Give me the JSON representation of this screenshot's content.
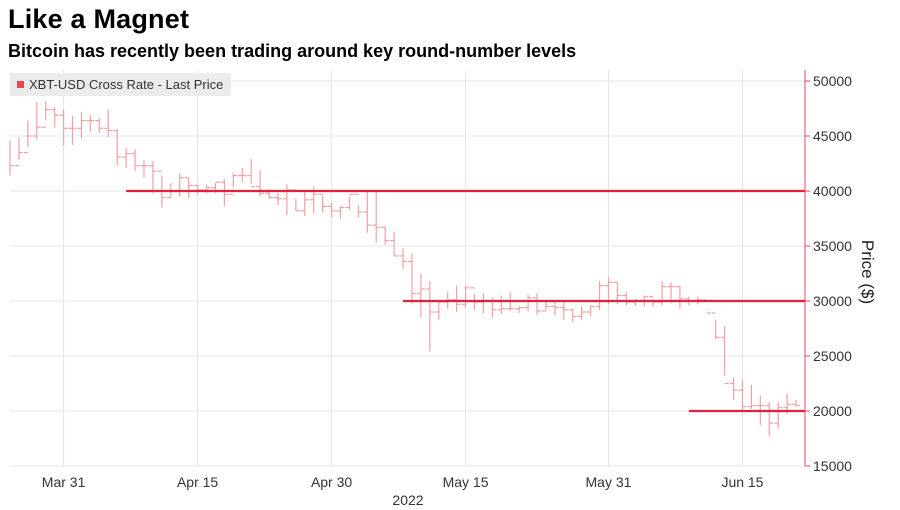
{
  "header": {
    "title": "Like a Magnet",
    "subtitle": "Bitcoin has recently been trading around key round-number levels"
  },
  "colors": {
    "price_bar": "#f2a0a4",
    "level_line": "#e0203c",
    "axis": "#e8474f",
    "grid": "#e6e6e6"
  },
  "chart_data": {
    "type": "line",
    "style": "hlc-bars",
    "title": "Like a Magnet",
    "subtitle": "Bitcoin has recently been trading around key round-number levels",
    "xlabel": "2022",
    "ylabel": "Price ($)",
    "ylim": [
      15000,
      51000
    ],
    "yticks": [
      15000,
      20000,
      25000,
      30000,
      35000,
      40000,
      45000,
      50000
    ],
    "ytick_labels": [
      "15000",
      "20000",
      "25000",
      "30000",
      "35000",
      "40000",
      "45000",
      "50000"
    ],
    "xticks": [
      "2022-03-31",
      "2022-04-15",
      "2022-04-30",
      "2022-05-15",
      "2022-05-31",
      "2022-06-15"
    ],
    "xtick_labels": [
      "Mar 31",
      "Apr 15",
      "Apr 30",
      "May 15",
      "May 31",
      "Jun 15"
    ],
    "xlim": [
      "2022-03-25",
      "2022-06-22"
    ],
    "grid": true,
    "legend": {
      "position": "top-left",
      "entries": [
        "XBT-USD Cross Rate - Last Price"
      ]
    },
    "series": [
      {
        "name": "XBT-USD Cross Rate - Last Price",
        "x": [
          "2022-03-25",
          "2022-03-26",
          "2022-03-27",
          "2022-03-28",
          "2022-03-29",
          "2022-03-30",
          "2022-03-31",
          "2022-04-01",
          "2022-04-02",
          "2022-04-03",
          "2022-04-04",
          "2022-04-05",
          "2022-04-06",
          "2022-04-07",
          "2022-04-08",
          "2022-04-09",
          "2022-04-10",
          "2022-04-11",
          "2022-04-12",
          "2022-04-13",
          "2022-04-14",
          "2022-04-15",
          "2022-04-16",
          "2022-04-17",
          "2022-04-18",
          "2022-04-19",
          "2022-04-20",
          "2022-04-21",
          "2022-04-22",
          "2022-04-23",
          "2022-04-24",
          "2022-04-25",
          "2022-04-26",
          "2022-04-27",
          "2022-04-28",
          "2022-04-29",
          "2022-04-30",
          "2022-05-01",
          "2022-05-02",
          "2022-05-03",
          "2022-05-04",
          "2022-05-05",
          "2022-05-06",
          "2022-05-07",
          "2022-05-08",
          "2022-05-09",
          "2022-05-10",
          "2022-05-11",
          "2022-05-12",
          "2022-05-13",
          "2022-05-14",
          "2022-05-15",
          "2022-05-16",
          "2022-05-17",
          "2022-05-18",
          "2022-05-19",
          "2022-05-20",
          "2022-05-21",
          "2022-05-22",
          "2022-05-23",
          "2022-05-24",
          "2022-05-25",
          "2022-05-26",
          "2022-05-27",
          "2022-05-28",
          "2022-05-29",
          "2022-05-30",
          "2022-05-31",
          "2022-06-01",
          "2022-06-02",
          "2022-06-03",
          "2022-06-04",
          "2022-06-05",
          "2022-06-06",
          "2022-06-07",
          "2022-06-08",
          "2022-06-09",
          "2022-06-10",
          "2022-06-11",
          "2022-06-12",
          "2022-06-13",
          "2022-06-14",
          "2022-06-15",
          "2022-06-16",
          "2022-06-17",
          "2022-06-18",
          "2022-06-19",
          "2022-06-20",
          "2022-06-21"
        ],
        "high": [
          44600,
          44900,
          46400,
          48100,
          48200,
          47600,
          47400,
          46800,
          47200,
          46900,
          46600,
          47400,
          45600,
          43900,
          43800,
          42800,
          42700,
          41400,
          40700,
          41600,
          41200,
          40600,
          40600,
          40700,
          41100,
          41600,
          42100,
          42900,
          41900,
          40200,
          39800,
          40600,
          39300,
          40000,
          40400,
          39600,
          38900,
          38600,
          39500,
          38700,
          40000,
          40000,
          36800,
          36300,
          34800,
          34300,
          32500,
          31800,
          30100,
          30800,
          31400,
          31400,
          30600,
          30700,
          30300,
          30500,
          30800,
          29500,
          30600,
          30700,
          30000,
          30100,
          29900,
          29300,
          29500,
          29600,
          31800,
          32200,
          31700,
          30800,
          30200,
          30500,
          30200,
          31800,
          31700,
          31400,
          30400,
          30400,
          29300,
          28300,
          27700,
          23000,
          22800,
          22400,
          21400,
          20800,
          20800,
          21600,
          21000
        ],
        "low": [
          41400,
          42800,
          44000,
          44700,
          46400,
          45800,
          44100,
          44200,
          44800,
          45400,
          45300,
          44900,
          42300,
          42100,
          41800,
          41200,
          39800,
          38500,
          39400,
          39500,
          39400,
          39700,
          39800,
          39800,
          38600,
          40300,
          40800,
          40700,
          39500,
          39300,
          38700,
          37800,
          38200,
          37700,
          38000,
          38000,
          37600,
          37500,
          38300,
          37600,
          36200,
          35300,
          35100,
          34100,
          32900,
          29700,
          28500,
          25400,
          28300,
          29300,
          29000,
          29400,
          29200,
          28900,
          28500,
          28800,
          29100,
          28900,
          29100,
          28700,
          29200,
          28700,
          28300,
          28100,
          28300,
          28600,
          29200,
          29700,
          29700,
          29600,
          29600,
          29500,
          29500,
          29600,
          29800,
          29300,
          29600,
          29700,
          29200,
          26500,
          23200,
          21000,
          20100,
          20200,
          18700,
          17700,
          18400,
          19700,
          20400
        ],
        "close": [
          42300,
          43500,
          45000,
          45800,
          47400,
          46900,
          45700,
          45700,
          46400,
          46400,
          45700,
          45500,
          43100,
          43400,
          42300,
          42300,
          41800,
          39400,
          40000,
          41200,
          40500,
          40100,
          40300,
          40800,
          39700,
          41400,
          41400,
          40400,
          39800,
          39400,
          39300,
          40100,
          38200,
          39200,
          39700,
          38600,
          38200,
          38500,
          39700,
          38100,
          36900,
          36700,
          35500,
          34100,
          33600,
          30700,
          31100,
          29000,
          29900,
          30100,
          29700,
          31200,
          29900,
          30000,
          29200,
          29300,
          29300,
          29400,
          30300,
          29100,
          29500,
          29400,
          29200,
          28600,
          29000,
          29500,
          31400,
          31700,
          30500,
          29900,
          30000,
          30400,
          29900,
          31300,
          31300,
          30200,
          30000,
          30100,
          28900,
          26700,
          22500,
          21900,
          20400,
          20500,
          20500,
          18900,
          20300,
          20600,
          20500
        ]
      }
    ],
    "levels": [
      {
        "value": 40000,
        "from": "2022-04-07",
        "to": "2022-06-22"
      },
      {
        "value": 30000,
        "from": "2022-05-08",
        "to": "2022-06-22"
      },
      {
        "value": 20000,
        "from": "2022-06-09",
        "to": "2022-06-22"
      }
    ]
  }
}
